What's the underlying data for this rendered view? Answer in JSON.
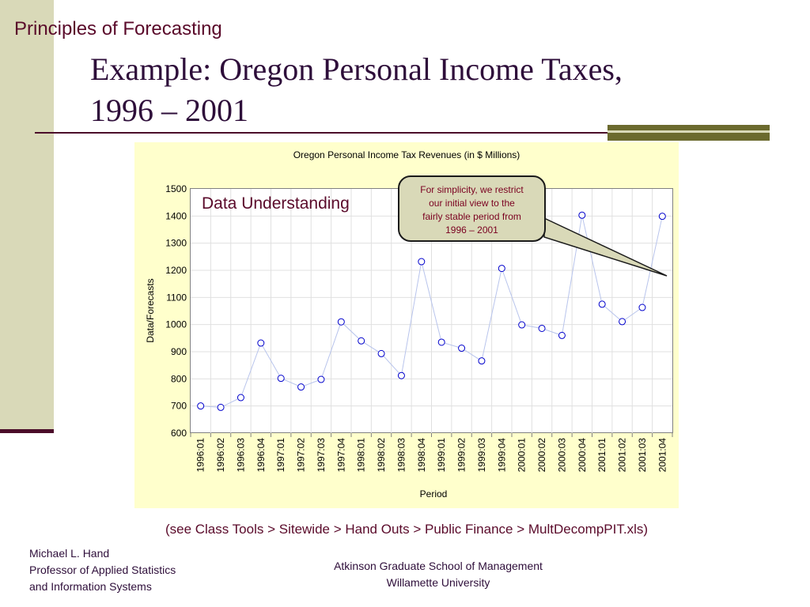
{
  "header": {
    "label": "Principles of Forecasting"
  },
  "slide": {
    "title_line1": "Example: Oregon Personal Income Taxes,",
    "title_line2": "1996 – 2001"
  },
  "annotation": {
    "data_understanding": "Data Understanding",
    "callout_lines": [
      "For simplicity, we restrict",
      "our initial view to the",
      "fairly stable period from",
      "1996 – 2001"
    ]
  },
  "source_note": "(see Class Tools > Sitewide > Hand Outs > Public Finance > MultDecompPIT.xls)",
  "footer": {
    "author_lines": [
      "Michael L. Hand",
      "Professor of Applied Statistics",
      "and Information Systems"
    ],
    "institution_lines": [
      "Atkinson Graduate School of Management",
      "Willamette University"
    ]
  },
  "colors": {
    "marker": "#0000cc",
    "line": "#b8c4ec",
    "accent": "#5a0a2a"
  },
  "chart_data": {
    "type": "line",
    "title": "Oregon Personal Income Tax Revenues (in $ Millions)",
    "xlabel": "Period",
    "ylabel": "Data/Forecasts",
    "ylim": [
      600,
      1500
    ],
    "yticks": [
      600,
      700,
      800,
      900,
      1000,
      1100,
      1200,
      1300,
      1400,
      1500
    ],
    "grid": true,
    "marker": "open-circle",
    "categories": [
      "1996:01",
      "1996:02",
      "1996:03",
      "1996:04",
      "1997:01",
      "1997:02",
      "1997:03",
      "1997:04",
      "1998:01",
      "1998:02",
      "1998:03",
      "1998:04",
      "1999:01",
      "1999:02",
      "1999:03",
      "1999:04",
      "2000:01",
      "2000:02",
      "2000:03",
      "2000:04",
      "2001:01",
      "2001:02",
      "2001:03",
      "2001:04"
    ],
    "values": [
      700,
      695,
      731,
      932,
      802,
      770,
      798,
      1010,
      940,
      893,
      812,
      1232,
      935,
      913,
      866,
      1207,
      999,
      986,
      960,
      1403,
      1075,
      1011,
      1063,
      1399
    ]
  }
}
